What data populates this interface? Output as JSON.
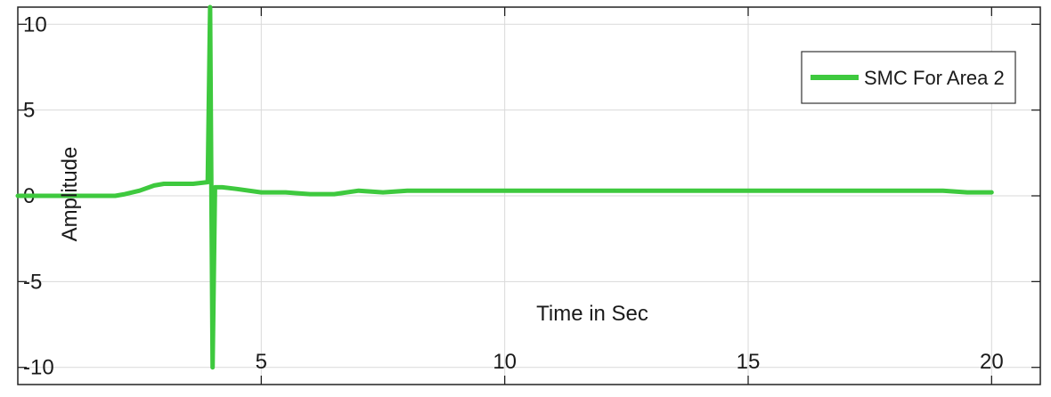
{
  "chart_data": {
    "type": "line",
    "title": "",
    "xlabel": "Time in Sec",
    "ylabel": "Amplitude",
    "xlim": [
      0,
      21
    ],
    "ylim": [
      -11,
      11
    ],
    "xticks": [
      5,
      10,
      15,
      20
    ],
    "yticks": [
      10,
      5,
      0,
      -5,
      -10
    ],
    "xtick_labels": [
      "5",
      "10",
      "15",
      "20"
    ],
    "ytick_labels": [
      "10",
      "5",
      "0",
      "-5",
      "-10"
    ],
    "grid": true,
    "legend_position": "top-right",
    "series": [
      {
        "name": "SMC For Area 2",
        "color": "#3ec93e",
        "x": [
          0,
          0.5,
          1.0,
          1.5,
          2.0,
          2.2,
          2.5,
          2.8,
          3.0,
          3.3,
          3.6,
          3.9,
          3.95,
          4.0,
          4.05,
          4.2,
          4.5,
          5.0,
          5.5,
          6.0,
          6.5,
          7.0,
          7.5,
          8.0,
          8.5,
          9.0,
          9.5,
          10.0,
          10.5,
          11.0,
          11.5,
          12.0,
          12.5,
          13.0,
          13.5,
          14.0,
          14.5,
          15.0,
          15.5,
          16.0,
          16.5,
          17.0,
          17.5,
          18.0,
          18.5,
          19.0,
          19.5,
          20.0
        ],
        "y": [
          0.0,
          0.0,
          0.0,
          0.0,
          0.0,
          0.1,
          0.3,
          0.6,
          0.7,
          0.7,
          0.7,
          0.8,
          11.0,
          -10.0,
          0.5,
          0.5,
          0.4,
          0.2,
          0.2,
          0.1,
          0.1,
          0.3,
          0.2,
          0.3,
          0.3,
          0.3,
          0.3,
          0.3,
          0.3,
          0.3,
          0.3,
          0.3,
          0.3,
          0.3,
          0.3,
          0.3,
          0.3,
          0.3,
          0.3,
          0.3,
          0.3,
          0.3,
          0.3,
          0.3,
          0.3,
          0.3,
          0.2,
          0.2
        ]
      }
    ]
  }
}
